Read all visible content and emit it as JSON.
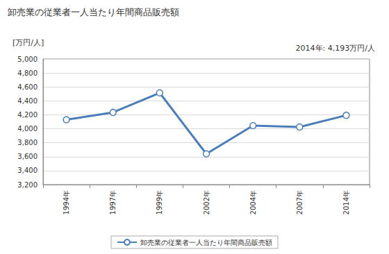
{
  "chart_data": {
    "type": "line",
    "title": "卸売業の従業者一人当たり年間商品販売額",
    "y_label": "[万円/人]",
    "annotation": "2014年: 4,193万円/人",
    "categories": [
      "1994年",
      "1997年",
      "1999年",
      "2002年",
      "2004年",
      "2007年",
      "2014年"
    ],
    "series": [
      {
        "name": "卸売業の従業者一人当たり年間商品販売額",
        "color": "#4a7ebb",
        "values": [
          4130,
          4235,
          4515,
          3640,
          4045,
          4025,
          4193
        ]
      }
    ],
    "marker": "circle",
    "ylim": [
      3200,
      5000
    ],
    "yticks": [
      {
        "value": 3200,
        "label": "3,200"
      },
      {
        "value": 3400,
        "label": "3,400"
      },
      {
        "value": 3600,
        "label": "3,600"
      },
      {
        "value": 3800,
        "label": "3,800"
      },
      {
        "value": 4000,
        "label": "4,000"
      },
      {
        "value": 4200,
        "label": "4,200"
      },
      {
        "value": 4400,
        "label": "4,400"
      },
      {
        "value": 4600,
        "label": "4,600"
      },
      {
        "value": 4800,
        "label": "4,800"
      },
      {
        "value": 5000,
        "label": "5,000"
      }
    ],
    "grid": true,
    "legend": "bottom"
  }
}
